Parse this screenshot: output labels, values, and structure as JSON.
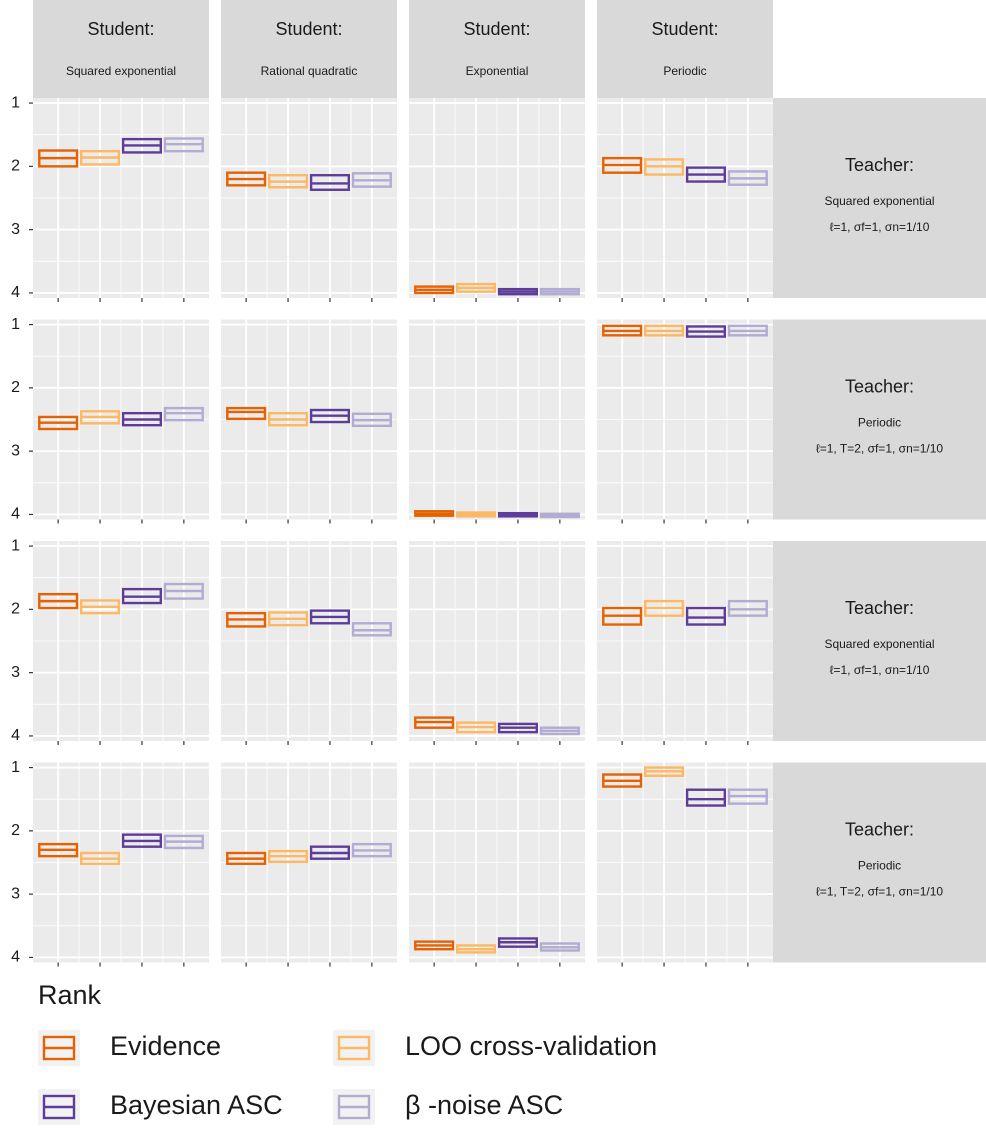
{
  "chart_data": {
    "type": "crossbar",
    "y_label": "Rank",
    "ylim": [
      0.92,
      4.08
    ],
    "reversed": true,
    "yticks": [
      1,
      2,
      3,
      4
    ],
    "grid": true,
    "legend_title": "Rank",
    "columns": [
      {
        "title": "Student:",
        "subtitle": "Squared exponential"
      },
      {
        "title": "Student:",
        "subtitle": "Rational quadratic"
      },
      {
        "title": "Student:",
        "subtitle": "Exponential"
      },
      {
        "title": "Student:",
        "subtitle": "Periodic"
      }
    ],
    "rows": [
      {
        "title": "Teacher:",
        "subtitle": "Squared exponential",
        "params": "ℓ=1, σf=1, σn=1/10"
      },
      {
        "title": "Teacher:",
        "subtitle": "Periodic",
        "params": "ℓ=1, T=2, σf=1, σn=1/10"
      },
      {
        "title": "Teacher:",
        "subtitle": "Squared exponential",
        "params": "ℓ=1, σf=1, σn=1/10"
      },
      {
        "title": "Teacher:",
        "subtitle": "Periodic",
        "params": "ℓ=1, T=2, σf=1, σn=1/10"
      }
    ],
    "series": [
      {
        "name": "Evidence",
        "color": "#e66101"
      },
      {
        "name": "LOO cross-validation",
        "color": "#fdb863"
      },
      {
        "name": "Bayesian ASC",
        "color": "#5e3c99"
      },
      {
        "name": "β -noise ASC",
        "color": "#b2abd2"
      }
    ],
    "panels": [
      [
        [
          [
            1.75,
            1.87,
            2.0
          ],
          [
            1.76,
            1.86,
            1.97
          ],
          [
            1.57,
            1.67,
            1.78
          ],
          [
            1.56,
            1.65,
            1.76
          ]
        ],
        [
          [
            2.1,
            2.2,
            2.3
          ],
          [
            2.14,
            2.24,
            2.33
          ],
          [
            2.14,
            2.27,
            2.37
          ],
          [
            2.11,
            2.22,
            2.32
          ]
        ],
        [
          [
            3.9,
            3.95,
            4.0
          ],
          [
            3.86,
            3.92,
            3.98
          ],
          [
            3.94,
            3.98,
            4.02
          ],
          [
            3.94,
            3.98,
            4.02
          ]
        ],
        [
          [
            1.87,
            1.98,
            2.1
          ],
          [
            1.89,
            2.0,
            2.13
          ],
          [
            2.02,
            2.13,
            2.24
          ],
          [
            2.08,
            2.19,
            2.29
          ]
        ]
      ],
      [
        [
          [
            2.46,
            2.55,
            2.65
          ],
          [
            2.37,
            2.46,
            2.56
          ],
          [
            2.4,
            2.5,
            2.59
          ],
          [
            2.32,
            2.4,
            2.51
          ]
        ],
        [
          [
            2.32,
            2.38,
            2.49
          ],
          [
            2.4,
            2.5,
            2.59
          ],
          [
            2.35,
            2.44,
            2.54
          ],
          [
            2.41,
            2.51,
            2.6
          ]
        ],
        [
          [
            3.95,
            3.99,
            4.02
          ],
          [
            3.97,
            4.0,
            4.03
          ],
          [
            3.98,
            4.0,
            4.03
          ],
          [
            3.99,
            4.01,
            4.04
          ]
        ],
        [
          [
            1.02,
            1.1,
            1.17
          ],
          [
            1.02,
            1.1,
            1.17
          ],
          [
            1.03,
            1.11,
            1.19
          ],
          [
            1.02,
            1.1,
            1.17
          ]
        ]
      ],
      [
        [
          [
            1.76,
            1.87,
            1.98
          ],
          [
            1.86,
            1.96,
            2.06
          ],
          [
            1.68,
            1.8,
            1.9
          ],
          [
            1.6,
            1.71,
            1.83
          ]
        ],
        [
          [
            2.06,
            2.16,
            2.27
          ],
          [
            2.05,
            2.15,
            2.25
          ],
          [
            2.02,
            2.12,
            2.22
          ],
          [
            2.22,
            2.33,
            2.41
          ]
        ],
        [
          [
            3.71,
            3.78,
            3.87
          ],
          [
            3.79,
            3.86,
            3.94
          ],
          [
            3.81,
            3.87,
            3.94
          ],
          [
            3.87,
            3.92,
            3.97
          ]
        ],
        [
          [
            1.98,
            2.1,
            2.24
          ],
          [
            1.87,
            1.98,
            2.1
          ],
          [
            1.98,
            2.13,
            2.24
          ],
          [
            1.87,
            2.0,
            2.1
          ]
        ]
      ],
      [
        [
          [
            2.21,
            2.3,
            2.4
          ],
          [
            2.35,
            2.44,
            2.52
          ],
          [
            2.06,
            2.16,
            2.25
          ],
          [
            2.08,
            2.17,
            2.27
          ]
        ],
        [
          [
            2.35,
            2.44,
            2.52
          ],
          [
            2.32,
            2.4,
            2.49
          ],
          [
            2.25,
            2.35,
            2.44
          ],
          [
            2.21,
            2.31,
            2.4
          ]
        ],
        [
          [
            3.75,
            3.81,
            3.87
          ],
          [
            3.81,
            3.87,
            3.92
          ],
          [
            3.7,
            3.76,
            3.83
          ],
          [
            3.78,
            3.84,
            3.89
          ]
        ],
        [
          [
            1.11,
            1.21,
            1.3
          ],
          [
            1.0,
            1.06,
            1.13
          ],
          [
            1.35,
            1.5,
            1.6
          ],
          [
            1.35,
            1.45,
            1.57
          ]
        ]
      ]
    ]
  }
}
